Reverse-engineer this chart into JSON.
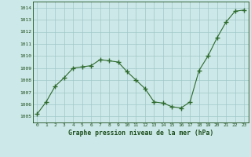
{
  "x": [
    0,
    1,
    2,
    3,
    4,
    5,
    6,
    7,
    8,
    9,
    10,
    11,
    12,
    13,
    14,
    15,
    16,
    17,
    18,
    19,
    20,
    21,
    22,
    23
  ],
  "y": [
    1005.2,
    1006.2,
    1007.5,
    1008.2,
    1009.0,
    1009.1,
    1009.2,
    1009.7,
    1009.6,
    1009.5,
    1008.7,
    1008.0,
    1007.3,
    1006.2,
    1006.1,
    1005.8,
    1005.7,
    1006.2,
    1008.8,
    1010.0,
    1011.5,
    1012.8,
    1013.7,
    1013.8
  ],
  "line_color": "#2d6a2d",
  "marker": "+",
  "markersize": 4,
  "bg_color": "#cde8e8",
  "grid_color": "#a0c8c8",
  "xlabel": "Graphe pression niveau de la mer (hPa)",
  "xlabel_color": "#1a4d1a",
  "tick_color": "#1a4d1a",
  "ylim": [
    1004.5,
    1014.5
  ],
  "yticks": [
    1005,
    1006,
    1007,
    1008,
    1009,
    1010,
    1011,
    1012,
    1013,
    1014
  ],
  "xlim": [
    -0.5,
    23.5
  ],
  "xticks": [
    0,
    1,
    2,
    3,
    4,
    5,
    6,
    7,
    8,
    9,
    10,
    11,
    12,
    13,
    14,
    15,
    16,
    17,
    18,
    19,
    20,
    21,
    22,
    23
  ]
}
